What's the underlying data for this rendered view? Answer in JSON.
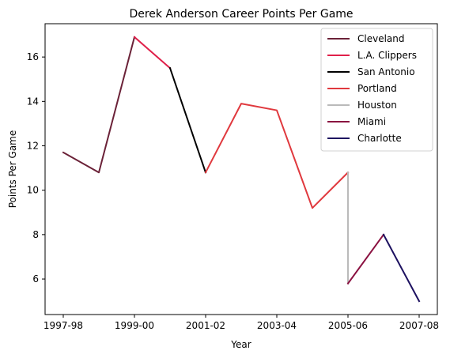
{
  "chart_data": {
    "type": "line",
    "title": "Derek Anderson  Career Points Per Game",
    "xlabel": "Year",
    "ylabel": "Points Per Game",
    "x_categories": [
      "1997-98",
      "1998-99",
      "1999-00",
      "2000-01",
      "2001-02",
      "2002-03",
      "2003-04",
      "2004-05",
      "2005-06",
      "2006-07",
      "2007-08"
    ],
    "x_tick_labels": [
      "1997-98",
      "1999-00",
      "2001-02",
      "2003-04",
      "2005-06",
      "2007-08"
    ],
    "y_ticks": [
      6,
      8,
      10,
      12,
      14,
      16
    ],
    "ylim": [
      4.4,
      17.5
    ],
    "grid": false,
    "legend_position": "top-right",
    "series": [
      {
        "name": "Cleveland",
        "color": "#6b2238",
        "x": [
          "1997-98",
          "1998-99",
          "1999-00"
        ],
        "y": [
          11.7,
          10.8,
          16.9
        ]
      },
      {
        "name": "L.A. Clippers",
        "color": "#e0204a",
        "x": [
          "1999-00",
          "2000-01"
        ],
        "y": [
          16.9,
          15.5
        ]
      },
      {
        "name": "San Antonio",
        "color": "#000000",
        "x": [
          "2000-01",
          "2001-02"
        ],
        "y": [
          15.5,
          10.8
        ]
      },
      {
        "name": "Portland",
        "color": "#e0393e",
        "x": [
          "2001-02",
          "2002-03",
          "2003-04",
          "2004-05",
          "2005-06"
        ],
        "y": [
          10.8,
          13.9,
          13.6,
          9.2,
          10.8
        ]
      },
      {
        "name": "Houston",
        "color": "#bababa",
        "x": [
          "2005-06",
          "2005-06"
        ],
        "y": [
          10.8,
          5.8
        ]
      },
      {
        "name": "Miami",
        "color": "#8a1040",
        "x": [
          "2005-06",
          "2006-07"
        ],
        "y": [
          5.8,
          8.0
        ]
      },
      {
        "name": "Charlotte",
        "color": "#1d1160",
        "x": [
          "2006-07",
          "2007-08"
        ],
        "y": [
          8.0,
          5.0
        ]
      }
    ]
  }
}
